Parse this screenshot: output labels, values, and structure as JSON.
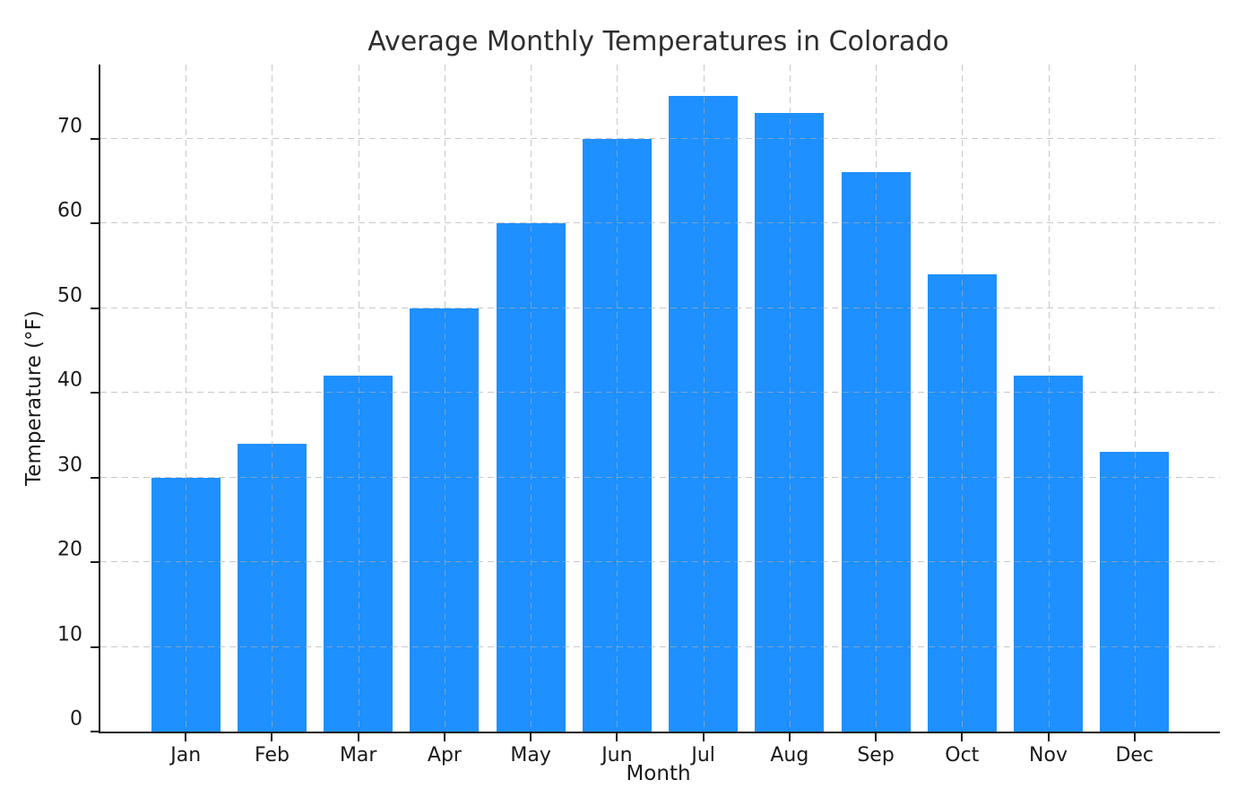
{
  "chart_data": {
    "type": "bar",
    "title": "Average Monthly Temperatures in Colorado",
    "xlabel": "Month",
    "ylabel": "Temperature (°F)",
    "categories": [
      "Jan",
      "Feb",
      "Mar",
      "Apr",
      "May",
      "Jun",
      "Jul",
      "Aug",
      "Sep",
      "Oct",
      "Nov",
      "Dec"
    ],
    "values": [
      30,
      34,
      42,
      50,
      60,
      70,
      75,
      73,
      66,
      54,
      42,
      33
    ],
    "yticks": [
      0,
      10,
      20,
      30,
      40,
      50,
      60,
      70
    ],
    "ylim": [
      0,
      78.75
    ],
    "bar_color": "#1E90FF",
    "grid": true,
    "grid_style": "dashed",
    "grid_color": "#acacac",
    "axis_color": "#1a1a1a",
    "text_color": "#1a1a1a",
    "background": "#ffffff",
    "legend": "none"
  }
}
